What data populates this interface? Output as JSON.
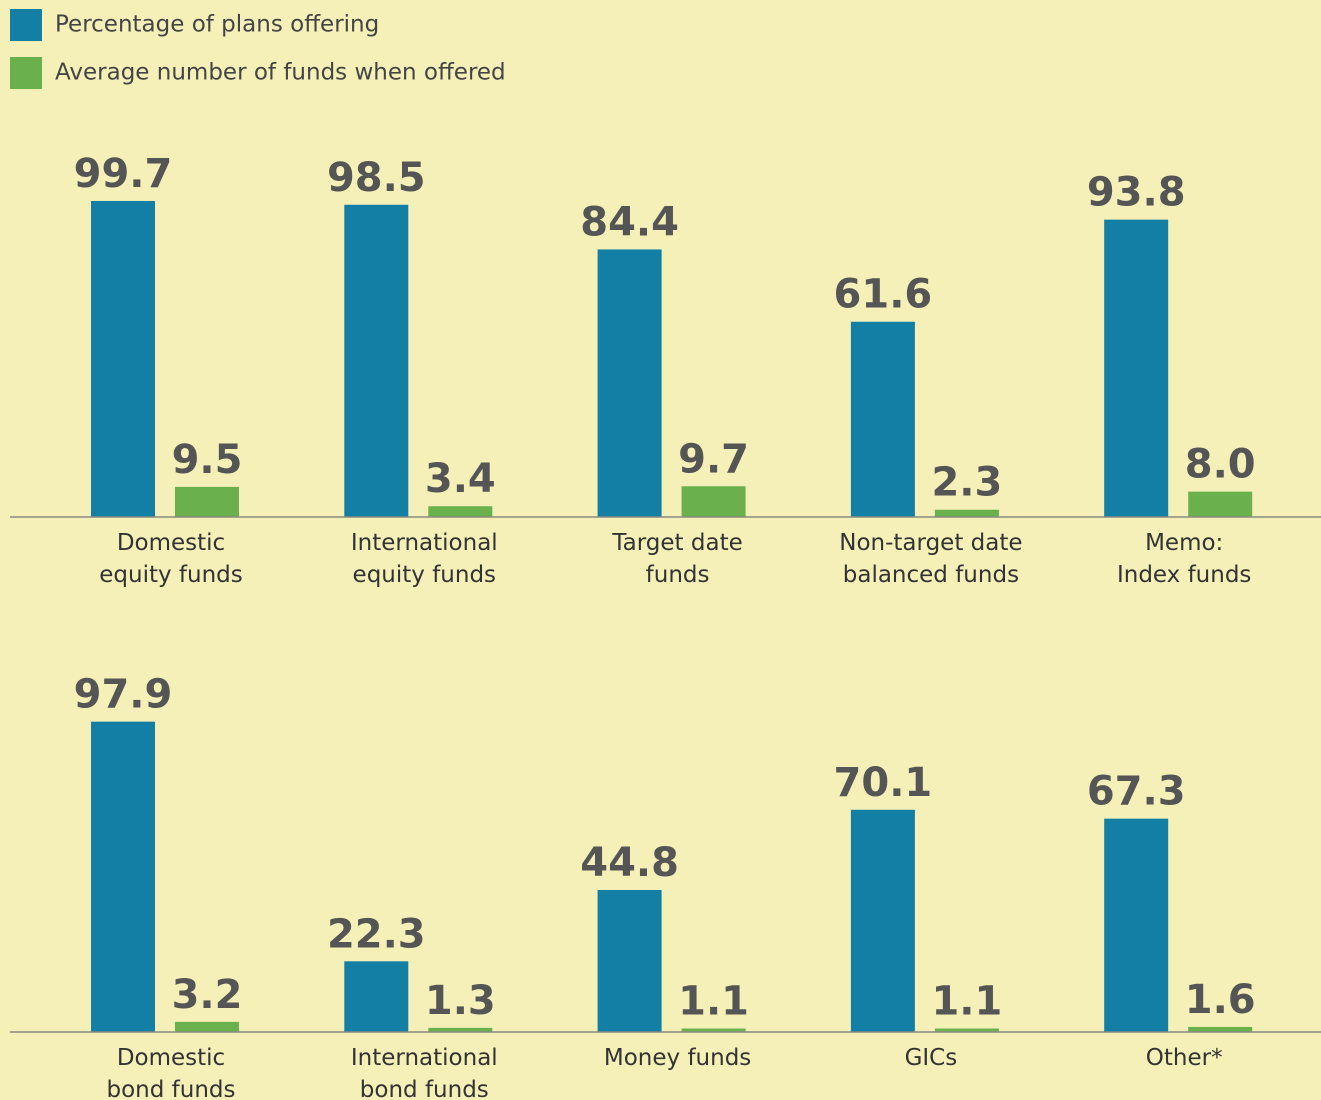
{
  "chart_data": [
    {
      "type": "bar",
      "categories": [
        "Domestic\nequity funds",
        "International\nequity funds",
        "Target date\nfunds",
        "Non-target date\nbalanced funds",
        "Memo:\nIndex funds"
      ],
      "series": [
        {
          "name": "Percentage of plans offering",
          "color": "#137fa5",
          "values": [
            99.7,
            98.5,
            84.4,
            61.6,
            93.8
          ]
        },
        {
          "name": "Average number of funds when offered",
          "color": "#6ab04c",
          "values": [
            9.5,
            3.4,
            9.7,
            2.3,
            8.0
          ],
          "value_labels": [
            "9.5",
            "3.4",
            "9.7",
            "2.3",
            "8.0"
          ]
        }
      ],
      "ylim": [
        0,
        100
      ]
    },
    {
      "type": "bar",
      "categories": [
        "Domestic\nbond funds",
        "International\nbond funds",
        "Money funds",
        "GICs",
        "Other*"
      ],
      "series": [
        {
          "color": "#137fa5",
          "values": [
            97.9,
            22.3,
            44.8,
            70.1,
            67.3
          ]
        },
        {
          "color": "#6ab04c",
          "values": [
            3.2,
            1.3,
            1.1,
            1.1,
            1.6
          ]
        }
      ],
      "ylim": [
        0,
        100
      ]
    }
  ]
}
